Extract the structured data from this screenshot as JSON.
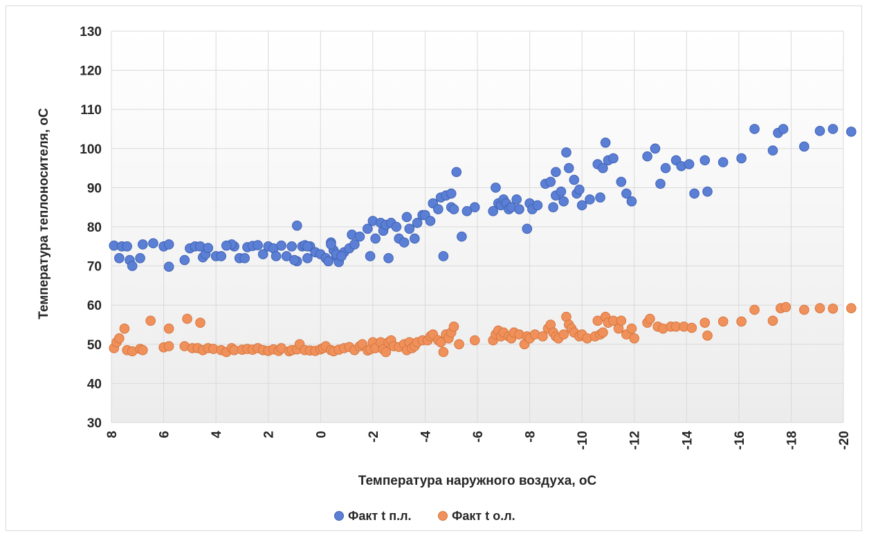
{
  "chart_data": {
    "type": "scatter",
    "title": "",
    "xlabel": "Температура наружного воздуха, оС",
    "ylabel": "Температура теплоносителя, оС",
    "xlim": [
      8,
      -20
    ],
    "ylim": [
      30,
      130
    ],
    "x_ticks": [
      "8",
      "6",
      "4",
      "2",
      "0",
      "-2",
      "-4",
      "-6",
      "-8",
      "-10",
      "-12",
      "-14",
      "-16",
      "-18",
      "-20"
    ],
    "y_ticks": [
      "30",
      "40",
      "50",
      "60",
      "70",
      "80",
      "90",
      "100",
      "110",
      "120",
      "130"
    ],
    "grid": true,
    "legend": "bottom",
    "series": [
      {
        "name": "Факт t п.л.",
        "color": "#5b7fd4",
        "edge": "#3f62b5",
        "points": [
          [
            7.9,
            75.2
          ],
          [
            7.7,
            72
          ],
          [
            7.6,
            75
          ],
          [
            7.4,
            75
          ],
          [
            7.3,
            71.5
          ],
          [
            7.2,
            70
          ],
          [
            6.9,
            72
          ],
          [
            6.8,
            75.5
          ],
          [
            6.4,
            75.8
          ],
          [
            6,
            75
          ],
          [
            5.8,
            75.5
          ],
          [
            5.8,
            69.8
          ],
          [
            5.2,
            71.5
          ],
          [
            5,
            74.5
          ],
          [
            4.8,
            75
          ],
          [
            4.6,
            75
          ],
          [
            4.5,
            72.2
          ],
          [
            4.4,
            73
          ],
          [
            4.3,
            74.6
          ],
          [
            4,
            72.5
          ],
          [
            3.8,
            72.5
          ],
          [
            3.3,
            75
          ],
          [
            3.1,
            72
          ],
          [
            2.9,
            72
          ],
          [
            2.8,
            74.8
          ],
          [
            2.6,
            75.1
          ],
          [
            2.4,
            75.3
          ],
          [
            3.4,
            75.5
          ],
          [
            3.6,
            75.2
          ],
          [
            2.2,
            73
          ],
          [
            2,
            75
          ],
          [
            1.8,
            74.5
          ],
          [
            1.7,
            72.5
          ],
          [
            1.5,
            75.2
          ],
          [
            1.3,
            72.5
          ],
          [
            1.1,
            75
          ],
          [
            0.9,
            71.2
          ],
          [
            0.7,
            75
          ],
          [
            0.6,
            75.3
          ],
          [
            0.5,
            72
          ],
          [
            0.4,
            75
          ],
          [
            1,
            71.5
          ],
          [
            0.9,
            80.3
          ],
          [
            0.5,
            75
          ],
          [
            0.2,
            73.5
          ],
          [
            0,
            73
          ],
          [
            -0.2,
            72
          ],
          [
            -0.3,
            71.2
          ],
          [
            -0.5,
            74
          ],
          [
            -0.6,
            72.5
          ],
          [
            -0.7,
            71
          ],
          [
            -0.9,
            73.5
          ],
          [
            -1.1,
            74.5
          ],
          [
            -1.2,
            78
          ],
          [
            -0.4,
            76
          ],
          [
            -0.4,
            75.5
          ],
          [
            -0.6,
            73
          ],
          [
            -0.8,
            72.5
          ],
          [
            -1.3,
            75.5
          ],
          [
            -1.5,
            77.5
          ],
          [
            -1.8,
            79.5
          ],
          [
            -2,
            81.5
          ],
          [
            -2.1,
            77
          ],
          [
            -1.9,
            72.5
          ],
          [
            -2.3,
            81
          ],
          [
            -2.4,
            79
          ],
          [
            -2.5,
            80.5
          ],
          [
            -2.6,
            72
          ],
          [
            -2.7,
            81
          ],
          [
            -2.9,
            80
          ],
          [
            -3,
            77
          ],
          [
            -3.2,
            76
          ],
          [
            -3.3,
            82.5
          ],
          [
            -3.4,
            79.5
          ],
          [
            -3.6,
            77
          ],
          [
            -3.7,
            81
          ],
          [
            -3.9,
            83
          ],
          [
            -4,
            83
          ],
          [
            -4.2,
            81.5
          ],
          [
            -4.3,
            86
          ],
          [
            -4.5,
            84.5
          ],
          [
            -4.6,
            87.5
          ],
          [
            -4.7,
            72.5
          ],
          [
            -4.8,
            88
          ],
          [
            -5,
            88.5
          ],
          [
            -5,
            85
          ],
          [
            -5.1,
            84.5
          ],
          [
            -5.2,
            94
          ],
          [
            -5.4,
            77.5
          ],
          [
            -5.9,
            85
          ],
          [
            -5.6,
            84
          ],
          [
            -6.6,
            84
          ],
          [
            -6.7,
            90
          ],
          [
            -6.8,
            86
          ],
          [
            -6.9,
            85.5
          ],
          [
            -7,
            87
          ],
          [
            -7.1,
            86
          ],
          [
            -7.2,
            84.5
          ],
          [
            -7.3,
            85
          ],
          [
            -7.5,
            87
          ],
          [
            -7.6,
            84.5
          ],
          [
            -7.9,
            79.5
          ],
          [
            -8,
            86
          ],
          [
            -8.1,
            84.5
          ],
          [
            -8.3,
            85.5
          ],
          [
            -8.6,
            91
          ],
          [
            -8.8,
            91.5
          ],
          [
            -8.9,
            85
          ],
          [
            -9,
            94
          ],
          [
            -9,
            88
          ],
          [
            -9.2,
            89
          ],
          [
            -9.3,
            86.5
          ],
          [
            -9.4,
            99
          ],
          [
            -9.5,
            95
          ],
          [
            -9.7,
            92
          ],
          [
            -9.8,
            88.5
          ],
          [
            -9.9,
            89.5
          ],
          [
            -10,
            85.5
          ],
          [
            -10.3,
            87
          ],
          [
            -10.6,
            96
          ],
          [
            -10.7,
            87.5
          ],
          [
            -10.8,
            95
          ],
          [
            -10.9,
            101.5
          ],
          [
            -11,
            97
          ],
          [
            -11.2,
            97.5
          ],
          [
            -11.5,
            91.5
          ],
          [
            -11.7,
            88.5
          ],
          [
            -11.9,
            86.5
          ],
          [
            -12.5,
            98
          ],
          [
            -12.8,
            100
          ],
          [
            -13,
            91
          ],
          [
            -13.2,
            95
          ],
          [
            -13.6,
            97
          ],
          [
            -13.8,
            95.5
          ],
          [
            -14.1,
            96
          ],
          [
            -14.3,
            88.5
          ],
          [
            -14.7,
            97
          ],
          [
            -14.8,
            89
          ],
          [
            -15.4,
            96.5
          ],
          [
            -16.1,
            97.5
          ],
          [
            -16.6,
            105
          ],
          [
            -17.3,
            99.5
          ],
          [
            -17.5,
            104
          ],
          [
            -17.7,
            105
          ],
          [
            -18.5,
            100.5
          ],
          [
            -19.1,
            104.5
          ],
          [
            -19.6,
            105
          ],
          [
            -20.3,
            104.3
          ]
        ]
      },
      {
        "name": "Факт t о.л.",
        "color": "#f0915c",
        "edge": "#d6763e",
        "points": [
          [
            7.9,
            49
          ],
          [
            7.8,
            50.5
          ],
          [
            7.7,
            51.5
          ],
          [
            7.5,
            54
          ],
          [
            7.4,
            48.5
          ],
          [
            7.2,
            48.2
          ],
          [
            6.9,
            48.8
          ],
          [
            6.8,
            48.5
          ],
          [
            6.5,
            56
          ],
          [
            6,
            49.2
          ],
          [
            5.8,
            54
          ],
          [
            5.8,
            49.5
          ],
          [
            5.2,
            49.5
          ],
          [
            5.1,
            56.5
          ],
          [
            4.9,
            49
          ],
          [
            4.7,
            49
          ],
          [
            4.6,
            55.5
          ],
          [
            4.5,
            48.5
          ],
          [
            4.3,
            49
          ],
          [
            4.1,
            48.8
          ],
          [
            3.8,
            48.5
          ],
          [
            3.6,
            48
          ],
          [
            3.4,
            49
          ],
          [
            3.3,
            48.5
          ],
          [
            3,
            48.6
          ],
          [
            2.8,
            48.8
          ],
          [
            2.6,
            48.6
          ],
          [
            2.4,
            49
          ],
          [
            2.2,
            48.5
          ],
          [
            2,
            48.3
          ],
          [
            1.8,
            48.7
          ],
          [
            1.6,
            48.3
          ],
          [
            1.5,
            49
          ],
          [
            1.2,
            48.2
          ],
          [
            1.1,
            48.5
          ],
          [
            0.9,
            48.7
          ],
          [
            0.8,
            50
          ],
          [
            0.6,
            48.5
          ],
          [
            0.4,
            48.4
          ],
          [
            0.2,
            48.3
          ],
          [
            0,
            48.7
          ],
          [
            -0.1,
            49
          ],
          [
            -0.2,
            49.5
          ],
          [
            -0.4,
            48.5
          ],
          [
            -0.5,
            48.2
          ],
          [
            -0.7,
            48.6
          ],
          [
            -0.9,
            49
          ],
          [
            -1.1,
            49.3
          ],
          [
            -1.3,
            48.5
          ],
          [
            -1.5,
            49.5
          ],
          [
            -1.6,
            50
          ],
          [
            -1.8,
            48.4
          ],
          [
            -1.9,
            48.7
          ],
          [
            -2,
            50.5
          ],
          [
            -2.1,
            49
          ],
          [
            -2.3,
            50.5
          ],
          [
            -2.4,
            48.7
          ],
          [
            -2.5,
            48
          ],
          [
            -2.6,
            50.5
          ],
          [
            -2.7,
            51
          ],
          [
            -2.8,
            49.5
          ],
          [
            -3,
            49.3
          ],
          [
            -3.2,
            50
          ],
          [
            -3.3,
            48.5
          ],
          [
            -3.4,
            50.5
          ],
          [
            -3.5,
            49
          ],
          [
            -3.6,
            49.5
          ],
          [
            -3.7,
            50.5
          ],
          [
            -3.9,
            51
          ],
          [
            -4.1,
            51
          ],
          [
            -4.2,
            52
          ],
          [
            -4.3,
            52.5
          ],
          [
            -4.5,
            51
          ],
          [
            -4.6,
            50.5
          ],
          [
            -4.7,
            48
          ],
          [
            -4.8,
            52.5
          ],
          [
            -4.9,
            51.5
          ],
          [
            -5,
            53
          ],
          [
            -5.1,
            54.5
          ],
          [
            -5.3,
            50
          ],
          [
            -5.9,
            51
          ],
          [
            -6.6,
            51
          ],
          [
            -6.7,
            52.5
          ],
          [
            -6.8,
            53.5
          ],
          [
            -6.9,
            52
          ],
          [
            -7,
            53
          ],
          [
            -7.2,
            52
          ],
          [
            -7.3,
            51.5
          ],
          [
            -7.4,
            53
          ],
          [
            -7.6,
            52.5
          ],
          [
            -7.8,
            50
          ],
          [
            -7.9,
            52
          ],
          [
            -8,
            51.5
          ],
          [
            -8.2,
            52.5
          ],
          [
            -8.5,
            52
          ],
          [
            -8.7,
            54
          ],
          [
            -8.8,
            55
          ],
          [
            -8.9,
            53
          ],
          [
            -9,
            52
          ],
          [
            -9.1,
            51.5
          ],
          [
            -9.3,
            52.5
          ],
          [
            -9.4,
            57
          ],
          [
            -9.5,
            55
          ],
          [
            -9.6,
            54
          ],
          [
            -9.7,
            53
          ],
          [
            -9.9,
            52
          ],
          [
            -10,
            52.5
          ],
          [
            -10.2,
            51.5
          ],
          [
            -10.5,
            52
          ],
          [
            -10.6,
            56
          ],
          [
            -10.7,
            52.5
          ],
          [
            -10.8,
            53
          ],
          [
            -10.9,
            57
          ],
          [
            -11,
            55.5
          ],
          [
            -11.2,
            56
          ],
          [
            -11.4,
            54
          ],
          [
            -11.5,
            56
          ],
          [
            -11.7,
            52.5
          ],
          [
            -11.9,
            54
          ],
          [
            -12,
            51.5
          ],
          [
            -12.5,
            55.5
          ],
          [
            -12.6,
            56.5
          ],
          [
            -12.9,
            54.5
          ],
          [
            -13.1,
            54
          ],
          [
            -13.4,
            54.5
          ],
          [
            -13.6,
            54.5
          ],
          [
            -13.9,
            54.5
          ],
          [
            -14.2,
            54.2
          ],
          [
            -14.7,
            55.5
          ],
          [
            -14.8,
            52.2
          ],
          [
            -15.4,
            55.8
          ],
          [
            -16.1,
            55.8
          ],
          [
            -16.6,
            58.8
          ],
          [
            -17.3,
            56
          ],
          [
            -17.6,
            59.2
          ],
          [
            -17.8,
            59.5
          ],
          [
            -18.5,
            58.8
          ],
          [
            -19.1,
            59.2
          ],
          [
            -19.6,
            59.1
          ],
          [
            -20.3,
            59.2
          ]
        ]
      }
    ]
  }
}
